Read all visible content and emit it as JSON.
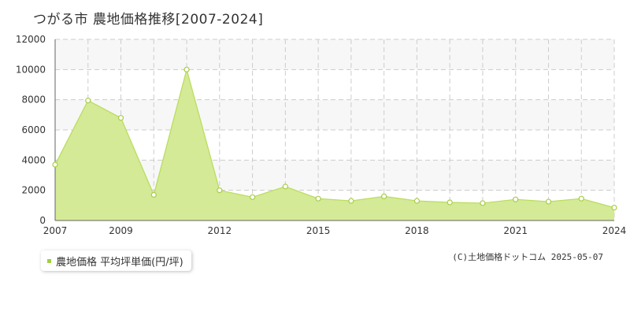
{
  "chart_data": {
    "type": "area",
    "title": "つがる市 農地価格推移[2007-2024]",
    "x": [
      2007,
      2008,
      2009,
      2010,
      2011,
      2012,
      2013,
      2014,
      2015,
      2016,
      2017,
      2018,
      2019,
      2020,
      2021,
      2022,
      2023,
      2024
    ],
    "series": [
      {
        "name": "農地価格 平均坪単価(円/坪)",
        "values": [
          3700,
          7950,
          6800,
          1700,
          10000,
          2000,
          1550,
          2250,
          1450,
          1300,
          1600,
          1300,
          1200,
          1150,
          1400,
          1250,
          1450,
          850
        ]
      }
    ],
    "xlim": [
      2007,
      2024
    ],
    "ylim": [
      0,
      12000
    ],
    "yticks": [
      0,
      2000,
      4000,
      6000,
      8000,
      10000,
      12000
    ],
    "xtick_labels": [
      2007,
      2009,
      2012,
      2015,
      2018,
      2021,
      2024
    ],
    "grid": true,
    "legend_position": "bottom-left",
    "colors": {
      "area_fill": "#d4ea96",
      "line": "#b8dc5a",
      "marker_edge": "#a8cc48",
      "legend_swatch": "#a0d040",
      "grid": "#cccccc",
      "band": "#f7f7f7"
    }
  },
  "copyright": "(C)土地価格ドットコム 2025-05-07"
}
